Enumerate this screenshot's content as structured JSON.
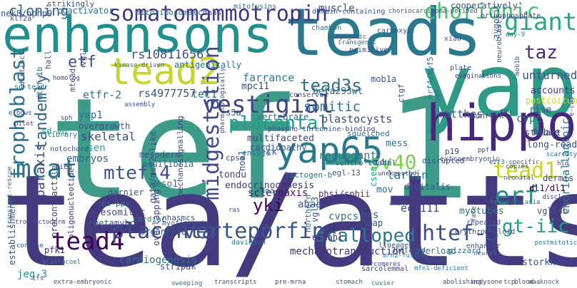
{
  "cloud": {
    "words": [
      {
        "text": "tef-1",
        "color": "#3e9b8a"
      },
      {
        "text": "tea/atts",
        "color": "#433a7f"
      },
      {
        "text": "teads",
        "color": "#2a788e"
      },
      {
        "text": "yap",
        "color": "#2c9a85"
      },
      {
        "text": "enhansons",
        "color": "#218f8d"
      },
      {
        "text": "hippo",
        "color": "#46277a"
      },
      {
        "text": "tead2",
        "color": "#c8d52b"
      },
      {
        "text": "yap65",
        "color": "#27798e"
      },
      {
        "text": "somatomammotropin",
        "color": "#3f3883"
      },
      {
        "text": "trophoblast",
        "color": "#2d718e"
      },
      {
        "text": "chorionic",
        "color": "#4cc16b"
      },
      {
        "text": "giant",
        "color": "#2aa87f"
      },
      {
        "text": "vestigial",
        "color": "#414487"
      },
      {
        "text": "mcat",
        "color": "#2b748e"
      },
      {
        "text": "etf",
        "color": "#3b528b"
      },
      {
        "text": "tead3s",
        "color": "#2c728e"
      },
      {
        "text": "midgestation",
        "color": "#3e4a89"
      },
      {
        "text": "mtef-4",
        "color": "#3b528b"
      },
      {
        "text": "placental",
        "color": "#1f9e89"
      },
      {
        "text": "tead1",
        "color": "#c6d72a"
      },
      {
        "text": "erf",
        "color": "#21918c"
      },
      {
        "text": "sv40",
        "color": "#7ad151"
      },
      {
        "text": "tead4",
        "color": "#440154"
      },
      {
        "text": "placenta",
        "color": "#3e4989"
      },
      {
        "text": "verteporfin",
        "color": "#39568c"
      },
      {
        "text": "scalloped",
        "color": "#2a788e"
      },
      {
        "text": "htef-5",
        "color": "#3b528b"
      },
      {
        "text": "gt-iic",
        "color": "#1fa188"
      },
      {
        "text": "cloning",
        "color": "#31688e"
      },
      {
        "text": "taz",
        "color": "#472d7b"
      },
      {
        "text": "rs10811656",
        "color": "#3a538b"
      },
      {
        "text": "somitic",
        "color": "#2c728e"
      },
      {
        "text": "paraxis",
        "color": "#3f4788"
      },
      {
        "text": "tandemly",
        "color": "#31688e"
      },
      {
        "text": "yki",
        "color": "#440154"
      },
      {
        "text": "unturned",
        "color": "#3b528b"
      },
      {
        "text": "accounts",
        "color": "#453781"
      },
      {
        "text": "postcoitum",
        "color": "#bddf26"
      },
      {
        "text": "chorioallantoic",
        "color": "#2a788e"
      },
      {
        "text": "dl1/dl1",
        "color": "#440154"
      },
      {
        "text": "vgll4b",
        "color": "#3b528b"
      },
      {
        "text": "storkhead",
        "color": "#3e4a89"
      },
      {
        "text": "myotubes",
        "color": "#2c728e"
      },
      {
        "text": "ecr111",
        "color": "#3f4788"
      },
      {
        "text": "mechanotransduction",
        "color": "#46307e"
      },
      {
        "text": "cardiogenesis",
        "color": "#2c728e"
      },
      {
        "text": "jeg-3",
        "color": "#21918c"
      },
      {
        "text": "pfk1",
        "color": "#472d7b"
      },
      {
        "text": "establishment",
        "color": "#3b528b"
      },
      {
        "text": "precontractile",
        "color": "#414487"
      },
      {
        "text": "oligonucleotide",
        "color": "#472d7b"
      },
      {
        "text": "abaa",
        "color": "#3b528b"
      },
      {
        "text": "scleroaxis",
        "color": "#471164"
      },
      {
        "text": "endocrinogenesis",
        "color": "#453781"
      },
      {
        "text": "cdna",
        "color": "#2a788e"
      },
      {
        "text": "meso1",
        "color": "#2c728e"
      },
      {
        "text": "redundant",
        "color": "#2b748e"
      },
      {
        "text": "multifaceted",
        "color": "#3f4788"
      },
      {
        "text": "cardiopathy",
        "color": "#3b528b"
      },
      {
        "text": "blastocysts",
        "color": "#3e4a89"
      },
      {
        "text": "beta293wt",
        "color": "#31688e"
      },
      {
        "text": "farrance",
        "color": "#2a788e"
      },
      {
        "text": "rs4977757",
        "color": "#3b528b"
      },
      {
        "text": "tec1",
        "color": "#31688e"
      },
      {
        "text": "etfr-2",
        "color": "#2c728e"
      },
      {
        "text": "yap1",
        "color": "#2c728e"
      },
      {
        "text": "overgrowth",
        "color": "#3b528b"
      },
      {
        "text": "skeletal",
        "color": "#3e4a89"
      },
      {
        "text": "csen",
        "color": "#22a884"
      },
      {
        "text": "embryos",
        "color": "#31688e"
      },
      {
        "text": "mesoderm",
        "color": "#3b528b"
      },
      {
        "text": "equilibria",
        "color": "#2c728e"
      },
      {
        "text": "mechanosignalling",
        "color": "#414487"
      },
      {
        "text": "matthes",
        "color": "#3b528b"
      },
      {
        "text": "cvpc",
        "color": "#2c728e"
      },
      {
        "text": "stewart",
        "color": "#3e4a89"
      },
      {
        "text": "larkin",
        "color": "#2a788e"
      },
      {
        "text": "mov",
        "color": "#31688e"
      },
      {
        "text": "tdu",
        "color": "#46307e"
      },
      {
        "text": "mess",
        "color": "#2c728e"
      },
      {
        "text": "digitalis",
        "color": "#3b528b"
      },
      {
        "text": "dermis",
        "color": "#414487"
      },
      {
        "text": "long-read",
        "color": "#3b528b"
      },
      {
        "text": "cvpcs",
        "color": "#2c728e"
      },
      {
        "text": "slmap",
        "color": "#3b528b"
      },
      {
        "text": "ordahl",
        "color": "#46307e"
      },
      {
        "text": "vgll3",
        "color": "#3b528b"
      },
      {
        "text": "northern",
        "color": "#31688e"
      },
      {
        "text": "phsi/sphii",
        "color": "#472d7b"
      },
      {
        "text": "hcs",
        "color": "#3b528b"
      },
      {
        "text": "csen2",
        "color": "#22a884"
      },
      {
        "text": "muscle",
        "color": "#3e4a89"
      },
      {
        "text": "coactivator",
        "color": "#31688e"
      },
      {
        "text": "mitoribosomal",
        "color": "#2c728e"
      },
      {
        "text": "cdnas",
        "color": "#3b528b"
      },
      {
        "text": "nek8/nphp9",
        "color": "#3b528b"
      },
      {
        "text": "mpc11",
        "color": "#3e4a89"
      },
      {
        "text": "s5a",
        "color": "#31688e"
      },
      {
        "text": "noa1",
        "color": "#3b528b"
      },
      {
        "text": "jck",
        "color": "#3b528b"
      },
      {
        "text": "ensure",
        "color": "#2c728e"
      },
      {
        "text": "cpsa",
        "color": "#3e4a89"
      },
      {
        "text": "dtef-1b",
        "color": "#31688e"
      },
      {
        "text": "mtead",
        "color": "#3b528b"
      },
      {
        "text": "vgll",
        "color": "#414487"
      },
      {
        "text": "hall",
        "color": "#3b528b"
      },
      {
        "text": "mob1a",
        "color": "#3b528b"
      },
      {
        "text": "mrf4/myf5",
        "color": "#2c728e"
      },
      {
        "text": "organ",
        "color": "#31688e"
      },
      {
        "text": "rise",
        "color": "#3e4a89"
      },
      {
        "text": "fibre",
        "color": "#414487"
      },
      {
        "text": "nonrisk",
        "color": "#3b528b"
      },
      {
        "text": "cooperatively",
        "color": "#3b528b"
      },
      {
        "text": "zygotic",
        "color": "#31688e"
      },
      {
        "text": "chambon",
        "color": "#2c728e"
      },
      {
        "text": "carboxyl",
        "color": "#3b528b"
      },
      {
        "text": "primitive",
        "color": "#414487"
      },
      {
        "text": "xiao",
        "color": "#3b528b"
      },
      {
        "text": "vertebrate",
        "color": "#2c728e"
      },
      {
        "text": "conserved",
        "color": "#3b528b"
      },
      {
        "text": "antigenically",
        "color": "#2c728e"
      },
      {
        "text": "tondu",
        "color": "#414487"
      },
      {
        "text": "garnier",
        "color": "#3b528b"
      },
      {
        "text": "sd-vg",
        "color": "#22a884"
      },
      {
        "text": "cardiac",
        "color": "#2c728e"
      },
      {
        "text": "betamyhc",
        "color": "#3b528b"
      },
      {
        "text": "presomitic",
        "color": "#414487"
      },
      {
        "text": "organelle",
        "color": "#3b528b"
      },
      {
        "text": "overlapping",
        "color": "#3e4a89"
      },
      {
        "text": "davidson",
        "color": "#2c728e"
      },
      {
        "text": "vmax",
        "color": "#3b528b"
      },
      {
        "text": "stripak",
        "color": "#3b528b"
      },
      {
        "text": "sarcolemmal",
        "color": "#414487"
      },
      {
        "text": "overload",
        "color": "#2c728e"
      },
      {
        "text": "3betahsd",
        "color": "#3b528b"
      },
      {
        "text": "gizzard",
        "color": "#2c728e"
      },
      {
        "text": "enhancer",
        "color": "#3b528b"
      },
      {
        "text": "erythromyeloid",
        "color": "#414487"
      },
      {
        "text": "repeated",
        "color": "#3b528b"
      },
      {
        "text": "hypodysplasia",
        "color": "#2c728e"
      },
      {
        "text": "copies",
        "color": "#3b528b"
      },
      {
        "text": "e2f3-specific",
        "color": "#31688e"
      },
      {
        "text": "disrupted",
        "color": "#3e4a89"
      },
      {
        "text": "unexpected",
        "color": "#414487"
      },
      {
        "text": "lactogen-b",
        "color": "#2c728e"
      },
      {
        "text": "egl-13",
        "color": "#3b528b"
      },
      {
        "text": "ventro-caudal",
        "color": "#2c728e"
      },
      {
        "text": "extraembryonic",
        "color": "#3b528b"
      },
      {
        "text": "p19",
        "color": "#414487"
      },
      {
        "text": "ctgf",
        "color": "#3b528b"
      },
      {
        "text": "squelched",
        "color": "#2c728e"
      },
      {
        "text": "phospho-threonine-binding",
        "color": "#3b528b"
      },
      {
        "text": "pharmacologically",
        "color": "#414487"
      },
      {
        "text": "bi-pps",
        "color": "#2c728e"
      },
      {
        "text": "gata/mef2-like",
        "color": "#3b528b"
      },
      {
        "text": "myoflaments",
        "color": "#3b528b"
      },
      {
        "text": "mfn1-deficient",
        "color": "#2c728e"
      },
      {
        "text": "sarcomeres",
        "color": "#414487"
      },
      {
        "text": "nhasmcs",
        "color": "#3b528b"
      },
      {
        "text": "library",
        "color": "#2c728e"
      },
      {
        "text": "notochord",
        "color": "#3b528b"
      },
      {
        "text": "died",
        "color": "#414487"
      },
      {
        "text": "lineages",
        "color": "#3b528b"
      },
      {
        "text": "mfn2-fusion",
        "color": "#2c728e"
      },
      {
        "text": "strikingly",
        "color": "#3b528b"
      },
      {
        "text": "klf2a",
        "color": "#414487"
      },
      {
        "text": "mitofusins",
        "color": "#2c728e"
      },
      {
        "text": "domain-containing",
        "color": "#3b528b"
      },
      {
        "text": "choriocarcinoma-derived",
        "color": "#3b528b"
      },
      {
        "text": "orthophosphate",
        "color": "#414487"
      },
      {
        "text": "kinase-driven",
        "color": "#2c728e"
      },
      {
        "text": "myogenic",
        "color": "#3b528b"
      },
      {
        "text": "transgenic",
        "color": "#2c728e"
      },
      {
        "text": "distinct",
        "color": "#3b528b"
      },
      {
        "text": "homolog",
        "color": "#414487"
      },
      {
        "text": "neuroblasts",
        "color": "#3b528b"
      },
      {
        "text": "day-9",
        "color": "#2c728e"
      },
      {
        "text": "plate",
        "color": "#3b528b"
      },
      {
        "text": "evaginations",
        "color": "#414487"
      },
      {
        "text": "mob1b",
        "color": "#3b528b"
      },
      {
        "text": "zga",
        "color": "#3b528b"
      },
      {
        "text": "neural",
        "color": "#2c728e"
      },
      {
        "text": "fate",
        "color": "#3b528b"
      },
      {
        "text": "e-cad",
        "color": "#414487"
      },
      {
        "text": "sd-tead",
        "color": "#2c728e"
      },
      {
        "text": "assembly",
        "color": "#3b528b"
      },
      {
        "text": "sph",
        "color": "#414487"
      },
      {
        "text": "tfs",
        "color": "#3b528b"
      },
      {
        "text": "blastocoel",
        "color": "#2c728e"
      },
      {
        "text": "extra-embryonic",
        "color": "#3b528b"
      },
      {
        "text": "trophectoderm",
        "color": "#414487"
      },
      {
        "text": "transient-rescue",
        "color": "#2c728e"
      },
      {
        "text": "amino",
        "color": "#3b528b"
      },
      {
        "text": "ppf",
        "color": "#414487"
      },
      {
        "text": "neonatal",
        "color": "#3b528b"
      },
      {
        "text": "scarcity",
        "color": "#2c728e"
      },
      {
        "text": "hid",
        "color": "#3b528b"
      },
      {
        "text": "disclosed",
        "color": "#414487"
      },
      {
        "text": "concise",
        "color": "#3b528b"
      },
      {
        "text": "postmitotic",
        "color": "#2c728e"
      },
      {
        "text": "elbows",
        "color": "#3b528b"
      },
      {
        "text": "pilot",
        "color": "#414487"
      },
      {
        "text": "ras",
        "color": "#3b528b"
      },
      {
        "text": "cuvier",
        "color": "#2c728e"
      },
      {
        "text": "stomach",
        "color": "#3b528b"
      },
      {
        "text": "pre-mrna",
        "color": "#414487"
      },
      {
        "text": "transcripts",
        "color": "#3b528b"
      },
      {
        "text": "sweeping",
        "color": "#2c728e"
      },
      {
        "text": "tcp",
        "color": "#3b528b"
      },
      {
        "text": "blood",
        "color": "#414487"
      },
      {
        "text": "aaa",
        "color": "#3b528b"
      },
      {
        "text": "knock",
        "color": "#2c728e"
      },
      {
        "text": "abolishing",
        "color": "#3b528b"
      },
      {
        "text": "ecdysone",
        "color": "#414487"
      }
    ]
  }
}
